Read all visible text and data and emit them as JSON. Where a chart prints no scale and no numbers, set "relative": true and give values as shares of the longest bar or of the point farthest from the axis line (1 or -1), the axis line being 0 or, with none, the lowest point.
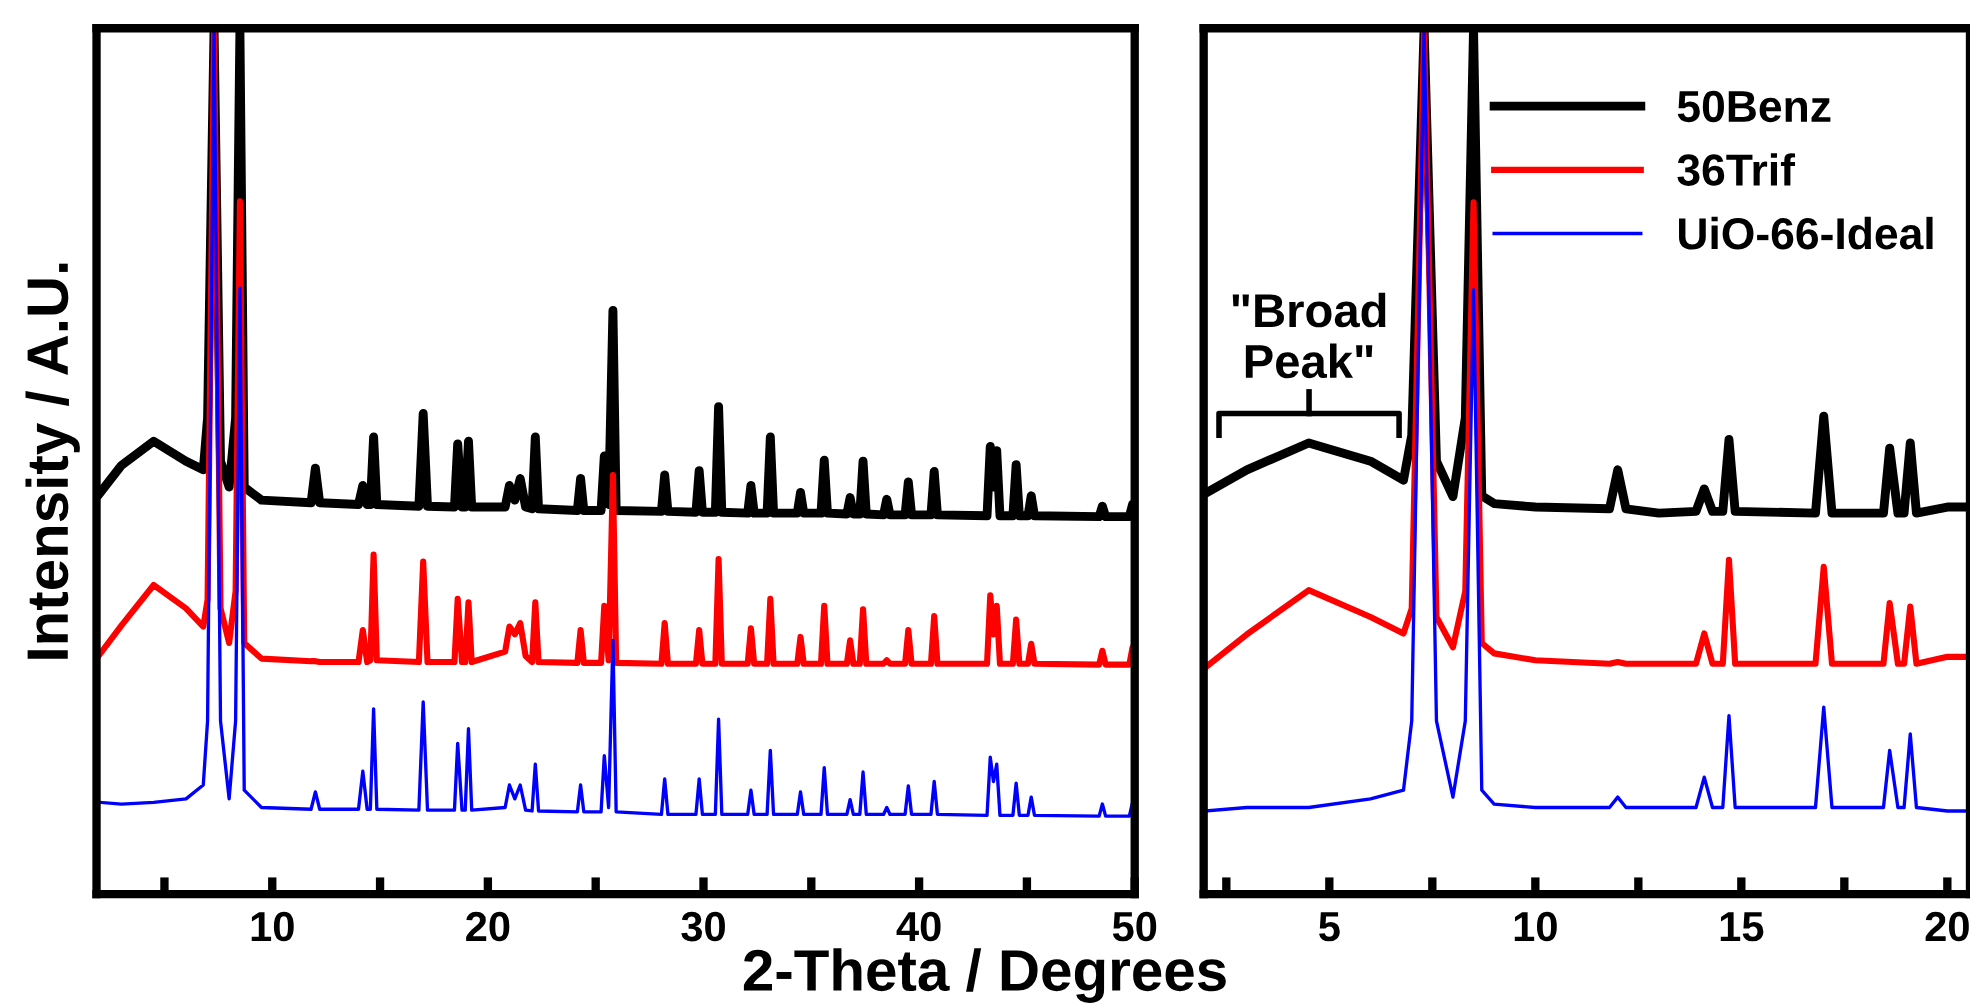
{
  "chart_data": [
    {
      "type": "line",
      "relative": true,
      "ylabel": "Intensity / A.U.",
      "xlabel": "2-Theta / Degrees",
      "xlim": [
        1.85,
        50
      ],
      "xticks": [
        {
          "value": 5,
          "label": null
        },
        10,
        {
          "value": 15,
          "label": null
        },
        20,
        {
          "value": 25,
          "label": null
        },
        30,
        {
          "value": 35,
          "label": null
        },
        40,
        {
          "value": 45,
          "label": null
        },
        50
      ],
      "grid": false,
      "legend": false,
      "marker": "none",
      "line_style": "solid",
      "x": [
        2,
        3,
        4.5,
        6,
        6.8,
        7.0,
        7.3,
        7.6,
        8.0,
        8.3,
        8.5,
        8.7,
        9.5,
        11.8,
        12.0,
        12.2,
        14.0,
        14.2,
        14.4,
        14.55,
        14.7,
        14.85,
        16.8,
        17.0,
        17.2,
        18.45,
        18.6,
        18.8,
        18.95,
        19.1,
        19.25,
        20.8,
        21.0,
        21.25,
        21.5,
        21.75,
        22.05,
        22.2,
        22.35,
        24.15,
        24.3,
        24.45,
        25.25,
        25.4,
        25.6,
        25.8,
        25.95,
        28.05,
        28.2,
        28.35,
        29.65,
        29.8,
        29.95,
        30.55,
        30.7,
        30.85,
        32.05,
        32.2,
        32.35,
        32.95,
        33.1,
        33.25,
        34.35,
        34.5,
        34.65,
        35.45,
        35.6,
        35.75,
        36.65,
        36.8,
        36.95,
        37.25,
        37.4,
        37.55,
        38.35,
        38.5,
        38.65,
        39.35,
        39.5,
        39.65,
        40.55,
        40.7,
        40.85,
        43.15,
        43.3,
        43.45,
        43.6,
        43.75,
        44.35,
        44.5,
        44.65,
        45.05,
        45.2,
        45.35,
        48.35,
        48.5,
        48.65,
        49.75,
        49.9,
        50
      ],
      "series": [
        {
          "color": "#000000",
          "values": [
            0.463,
            0.495,
            0.523,
            0.5,
            0.49,
            0.55,
            1,
            0.5,
            0.47,
            0.55,
            1,
            0.47,
            0.455,
            0.452,
            0.492,
            0.452,
            0.45,
            0.472,
            0.45,
            0.45,
            0.528,
            0.45,
            0.448,
            0.555,
            0.448,
            0.447,
            0.52,
            0.447,
            0.447,
            0.523,
            0.447,
            0.447,
            0.472,
            0.455,
            0.48,
            0.447,
            0.445,
            0.528,
            0.445,
            0.443,
            0.48,
            0.443,
            0.443,
            0.506,
            0.45,
            0.674,
            0.443,
            0.442,
            0.484,
            0.442,
            0.441,
            0.489,
            0.441,
            0.441,
            0.563,
            0.441,
            0.44,
            0.472,
            0.44,
            0.44,
            0.528,
            0.44,
            0.44,
            0.464,
            0.44,
            0.44,
            0.501,
            0.44,
            0.439,
            0.458,
            0.439,
            0.439,
            0.5,
            0.439,
            0.438,
            0.456,
            0.438,
            0.438,
            0.476,
            0.438,
            0.438,
            0.488,
            0.438,
            0.437,
            0.517,
            0.47,
            0.512,
            0.437,
            0.437,
            0.496,
            0.437,
            0.437,
            0.46,
            0.437,
            0.436,
            0.448,
            0.436,
            0.436,
            0.45,
            0.45
          ]
        },
        {
          "color": "#ff0000",
          "values": [
            0.277,
            0.31,
            0.357,
            0.33,
            0.309,
            0.34,
            1,
            0.33,
            0.29,
            0.35,
            0.8,
            0.29,
            0.272,
            0.269,
            0.269,
            0.268,
            0.268,
            0.305,
            0.268,
            0.27,
            0.392,
            0.27,
            0.268,
            0.384,
            0.268,
            0.268,
            0.341,
            0.268,
            0.268,
            0.337,
            0.268,
            0.28,
            0.309,
            0.3,
            0.313,
            0.275,
            0.268,
            0.337,
            0.268,
            0.267,
            0.305,
            0.267,
            0.267,
            0.333,
            0.27,
            0.484,
            0.267,
            0.266,
            0.313,
            0.266,
            0.266,
            0.305,
            0.266,
            0.266,
            0.387,
            0.266,
            0.266,
            0.307,
            0.266,
            0.266,
            0.341,
            0.266,
            0.266,
            0.297,
            0.266,
            0.266,
            0.333,
            0.266,
            0.266,
            0.293,
            0.266,
            0.266,
            0.329,
            0.266,
            0.266,
            0.27,
            0.266,
            0.266,
            0.305,
            0.266,
            0.266,
            0.321,
            0.266,
            0.266,
            0.345,
            0.3,
            0.333,
            0.266,
            0.266,
            0.317,
            0.266,
            0.266,
            0.289,
            0.266,
            0.265,
            0.281,
            0.265,
            0.265,
            0.285,
            0.285
          ]
        },
        {
          "color": "#0000ff",
          "values": [
            0.106,
            0.104,
            0.106,
            0.11,
            0.126,
            0.2,
            1,
            0.2,
            0.11,
            0.2,
            0.7,
            0.12,
            0.1,
            0.098,
            0.118,
            0.098,
            0.098,
            0.142,
            0.098,
            0.098,
            0.214,
            0.098,
            0.097,
            0.222,
            0.097,
            0.097,
            0.174,
            0.097,
            0.097,
            0.191,
            0.097,
            0.1,
            0.126,
            0.11,
            0.126,
            0.097,
            0.096,
            0.15,
            0.096,
            0.095,
            0.126,
            0.095,
            0.095,
            0.16,
            0.1,
            0.293,
            0.095,
            0.092,
            0.133,
            0.092,
            0.092,
            0.133,
            0.092,
            0.092,
            0.202,
            0.092,
            0.092,
            0.12,
            0.092,
            0.092,
            0.166,
            0.092,
            0.092,
            0.118,
            0.092,
            0.092,
            0.146,
            0.092,
            0.092,
            0.109,
            0.092,
            0.092,
            0.141,
            0.092,
            0.092,
            0.1,
            0.092,
            0.092,
            0.125,
            0.092,
            0.092,
            0.13,
            0.092,
            0.091,
            0.158,
            0.13,
            0.15,
            0.091,
            0.091,
            0.128,
            0.091,
            0.091,
            0.112,
            0.091,
            0.09,
            0.104,
            0.09,
            0.09,
            0.106,
            0.106
          ]
        }
      ]
    },
    {
      "type": "line",
      "relative": true,
      "xlim": [
        1.95,
        20.55
      ],
      "xticks": [
        {
          "value": 2.5,
          "label": null
        },
        5,
        {
          "value": 7.5,
          "label": null
        },
        10,
        {
          "value": 12.5,
          "label": null
        },
        15,
        {
          "value": 17.5,
          "label": null
        },
        20
      ],
      "grid": false,
      "legend": "top right",
      "marker": "none",
      "line_style": "solid",
      "annotations": [
        "\"Broad\nPeak\""
      ],
      "x": [
        2,
        3,
        4.5,
        6,
        6.8,
        7.0,
        7.3,
        7.6,
        8.0,
        8.3,
        8.5,
        8.7,
        9.0,
        10,
        11.8,
        12.0,
        12.2,
        13,
        13.9,
        14.1,
        14.3,
        14.55,
        14.7,
        14.85,
        16.8,
        17.0,
        17.2,
        18.45,
        18.6,
        18.8,
        18.95,
        19.1,
        19.25,
        20,
        20.5
      ],
      "series": [
        {
          "name": "50Benz",
          "color": "#000000",
          "values": [
            0.463,
            0.49,
            0.521,
            0.5,
            0.478,
            0.53,
            1,
            0.5,
            0.459,
            0.55,
            1,
            0.46,
            0.451,
            0.447,
            0.445,
            0.49,
            0.445,
            0.44,
            0.442,
            0.468,
            0.442,
            0.442,
            0.525,
            0.442,
            0.44,
            0.552,
            0.44,
            0.44,
            0.515,
            0.44,
            0.44,
            0.521,
            0.44,
            0.447,
            0.447
          ]
        },
        {
          "name": "36Trif",
          "color": "#ff0000",
          "values": [
            0.262,
            0.3,
            0.351,
            0.32,
            0.301,
            0.33,
            1,
            0.32,
            0.285,
            0.35,
            0.799,
            0.29,
            0.278,
            0.27,
            0.266,
            0.268,
            0.266,
            0.266,
            0.266,
            0.301,
            0.266,
            0.266,
            0.386,
            0.266,
            0.266,
            0.378,
            0.266,
            0.266,
            0.336,
            0.266,
            0.266,
            0.332,
            0.266,
            0.274,
            0.274
          ]
        },
        {
          "name": "UiO-66-Ideal",
          "color": "#0000ff",
          "values": [
            0.096,
            0.1,
            0.1,
            0.11,
            0.12,
            0.2,
            1,
            0.2,
            0.112,
            0.2,
            0.698,
            0.12,
            0.104,
            0.1,
            0.1,
            0.112,
            0.1,
            0.1,
            0.1,
            0.135,
            0.1,
            0.1,
            0.206,
            0.1,
            0.1,
            0.216,
            0.1,
            0.1,
            0.166,
            0.1,
            0.1,
            0.185,
            0.1,
            0.096,
            0.096
          ]
        }
      ]
    }
  ]
}
